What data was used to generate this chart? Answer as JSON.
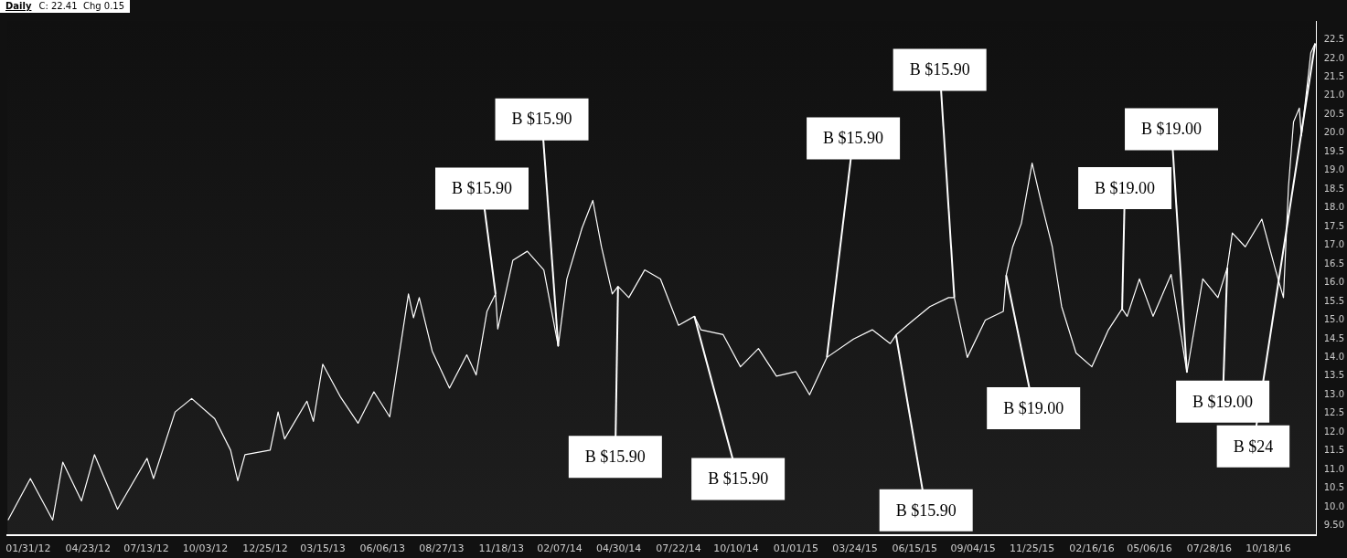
{
  "chart_data": {
    "type": "line",
    "title": "Daily",
    "subtitle": "C: 22.41  Chg 0.15",
    "xlim": [
      "2012-01-02",
      "2016-12-24"
    ],
    "xticks": [
      {
        "value": "2012-01-31",
        "label": "01/31/12"
      },
      {
        "value": "2012-04-23",
        "label": "04/23/12"
      },
      {
        "value": "2012-07-13",
        "label": "07/13/12"
      },
      {
        "value": "2012-10-03",
        "label": "10/03/12"
      },
      {
        "value": "2012-12-25",
        "label": "12/25/12"
      },
      {
        "value": "2013-03-15",
        "label": "03/15/13"
      },
      {
        "value": "2013-06-06",
        "label": "06/06/13"
      },
      {
        "value": "2013-08-27",
        "label": "08/27/13"
      },
      {
        "value": "2013-11-18",
        "label": "11/18/13"
      },
      {
        "value": "2014-02-07",
        "label": "02/07/14"
      },
      {
        "value": "2014-04-30",
        "label": "04/30/14"
      },
      {
        "value": "2014-07-22",
        "label": "07/22/14"
      },
      {
        "value": "2014-10-10",
        "label": "10/10/14"
      },
      {
        "value": "2015-01-01",
        "label": "01/01/15"
      },
      {
        "value": "2015-03-24",
        "label": "03/24/15"
      },
      {
        "value": "2015-06-15",
        "label": "06/15/15"
      },
      {
        "value": "2015-09-04",
        "label": "09/04/15"
      },
      {
        "value": "2015-11-25",
        "label": "11/25/15"
      },
      {
        "value": "2016-02-16",
        "label": "02/16/16"
      },
      {
        "value": "2016-05-06",
        "label": "05/06/16"
      },
      {
        "value": "2016-07-28",
        "label": "07/28/16"
      },
      {
        "value": "2016-10-18",
        "label": "10/18/16"
      }
    ],
    "ylim": [
      9.25,
      23
    ],
    "yticks": [
      {
        "value": 9.5,
        "label": "9.50"
      },
      {
        "value": 10,
        "label": "10.0"
      },
      {
        "value": 10.5,
        "label": "10.5"
      },
      {
        "value": 11,
        "label": "11.0"
      },
      {
        "value": 11.5,
        "label": "11.5"
      },
      {
        "value": 12,
        "label": "12.0"
      },
      {
        "value": 12.5,
        "label": "12.5"
      },
      {
        "value": 13,
        "label": "13.0"
      },
      {
        "value": 13.5,
        "label": "13.5"
      },
      {
        "value": 14,
        "label": "14.0"
      },
      {
        "value": 14.5,
        "label": "14.5"
      },
      {
        "value": 15,
        "label": "15.0"
      },
      {
        "value": 15.5,
        "label": "15.5"
      },
      {
        "value": 16,
        "label": "16.0"
      },
      {
        "value": 16.5,
        "label": "16.5"
      },
      {
        "value": 17,
        "label": "17.0"
      },
      {
        "value": 17.5,
        "label": "17.5"
      },
      {
        "value": 18,
        "label": "18.0"
      },
      {
        "value": 18.5,
        "label": "18.5"
      },
      {
        "value": 19,
        "label": "19.0"
      },
      {
        "value": 19.5,
        "label": "19.5"
      },
      {
        "value": 20,
        "label": "20.0"
      },
      {
        "value": 20.5,
        "label": "20.5"
      },
      {
        "value": 21,
        "label": "21.0"
      },
      {
        "value": 21.5,
        "label": "21.5"
      },
      {
        "value": 22,
        "label": "22.0"
      },
      {
        "value": 22.5,
        "label": "22.5"
      }
    ],
    "legend": false,
    "marker": "none",
    "series": [
      {
        "color": "#ffffff",
        "x": [
          "2012-01-03",
          "2012-02-03",
          "2012-03-05",
          "2012-03-19",
          "2012-04-14",
          "2012-05-02",
          "2012-06-03",
          "2012-07-14",
          "2012-07-23",
          "2012-08-22",
          "2012-09-14",
          "2012-10-16",
          "2012-11-07",
          "2012-11-17",
          "2012-11-27",
          "2013-01-01",
          "2013-01-12",
          "2013-01-21",
          "2013-02-21",
          "2013-03-02",
          "2013-03-15",
          "2013-04-09",
          "2013-05-03",
          "2013-05-25",
          "2013-06-16",
          "2013-07-12",
          "2013-07-19",
          "2013-07-27",
          "2013-08-14",
          "2013-09-07",
          "2013-10-01",
          "2013-10-14",
          "2013-10-29",
          "2013-11-10",
          "2013-11-13",
          "2013-12-04",
          "2013-12-24",
          "2014-01-16",
          "2014-02-05",
          "2014-02-17",
          "2014-03-10",
          "2014-03-25",
          "2014-04-06",
          "2014-04-21",
          "2014-04-29",
          "2014-05-14",
          "2014-06-05",
          "2014-06-27",
          "2014-07-22",
          "2014-08-13",
          "2014-08-22",
          "2014-09-22",
          "2014-10-16",
          "2014-11-10",
          "2014-12-05",
          "2015-01-01",
          "2015-01-20",
          "2015-02-13",
          "2015-03-22",
          "2015-04-17",
          "2015-05-12",
          "2015-05-20",
          "2015-06-12",
          "2015-07-06",
          "2015-08-01",
          "2015-08-09",
          "2015-08-27",
          "2015-09-21",
          "2015-10-16",
          "2015-10-20",
          "2015-10-29",
          "2015-11-10",
          "2015-11-25",
          "2015-12-07",
          "2015-12-23",
          "2016-01-05",
          "2016-01-25",
          "2016-02-16",
          "2016-03-10",
          "2016-03-29",
          "2016-04-05",
          "2016-04-22",
          "2016-05-11",
          "2016-06-05",
          "2016-06-27",
          "2016-07-19",
          "2016-08-09",
          "2016-08-22",
          "2016-08-29",
          "2016-09-16",
          "2016-10-09",
          "2016-10-28",
          "2016-11-08",
          "2016-11-15",
          "2016-11-22",
          "2016-11-30",
          "2016-12-03",
          "2016-12-11",
          "2016-12-16",
          "2016-12-22"
        ],
        "values": [
          9.65,
          10.76,
          9.65,
          11.2,
          10.16,
          11.4,
          9.94,
          11.3,
          10.76,
          12.54,
          12.9,
          12.36,
          11.52,
          10.7,
          11.4,
          11.52,
          12.54,
          11.82,
          12.83,
          12.29,
          13.82,
          12.93,
          12.24,
          13.08,
          12.41,
          15.7,
          15.06,
          15.6,
          14.17,
          13.18,
          14.07,
          13.53,
          15.23,
          15.7,
          14.76,
          16.6,
          16.84,
          16.34,
          14.3,
          16.1,
          17.46,
          18.2,
          16.96,
          15.7,
          15.9,
          15.6,
          16.34,
          16.1,
          14.86,
          15.1,
          14.74,
          14.61,
          13.75,
          14.24,
          13.5,
          13.62,
          13.0,
          14.0,
          14.49,
          14.74,
          14.37,
          14.6,
          14.98,
          15.36,
          15.6,
          15.6,
          14.0,
          15.0,
          15.23,
          16.2,
          16.96,
          17.58,
          19.2,
          18.2,
          16.96,
          15.36,
          14.12,
          13.75,
          14.74,
          15.3,
          15.1,
          16.1,
          15.1,
          16.22,
          13.6,
          16.1,
          15.6,
          16.4,
          17.33,
          16.96,
          17.7,
          16.34,
          15.6,
          18.57,
          20.3,
          20.67,
          19.93,
          21.29,
          22.15,
          22.4
        ]
      }
    ],
    "annotations": [
      {
        "text": "B $15.90",
        "x": "2013-11-10",
        "y": 15.7
      },
      {
        "text": "B $15.90",
        "x": "2014-02-05",
        "y": 14.3
      },
      {
        "text": "B $15.90",
        "x": "2014-04-29",
        "y": 15.9
      },
      {
        "text": "B $15.90",
        "x": "2014-08-13",
        "y": 15.1
      },
      {
        "text": "B $15.90",
        "x": "2015-02-13",
        "y": 14.0
      },
      {
        "text": "B $15.90",
        "x": "2015-05-20",
        "y": 14.6
      },
      {
        "text": "B $15.90",
        "x": "2015-08-09",
        "y": 15.6
      },
      {
        "text": "B $19.00",
        "x": "2015-10-20",
        "y": 16.2
      },
      {
        "text": "B $19.00",
        "x": "2016-03-29",
        "y": 15.3
      },
      {
        "text": "B $19.00",
        "x": "2016-06-27",
        "y": 13.6
      },
      {
        "text": "B $19.00",
        "x": "2016-08-22",
        "y": 16.4
      },
      {
        "text": "B $24",
        "x": "2016-12-22",
        "y": 22.4
      }
    ]
  }
}
